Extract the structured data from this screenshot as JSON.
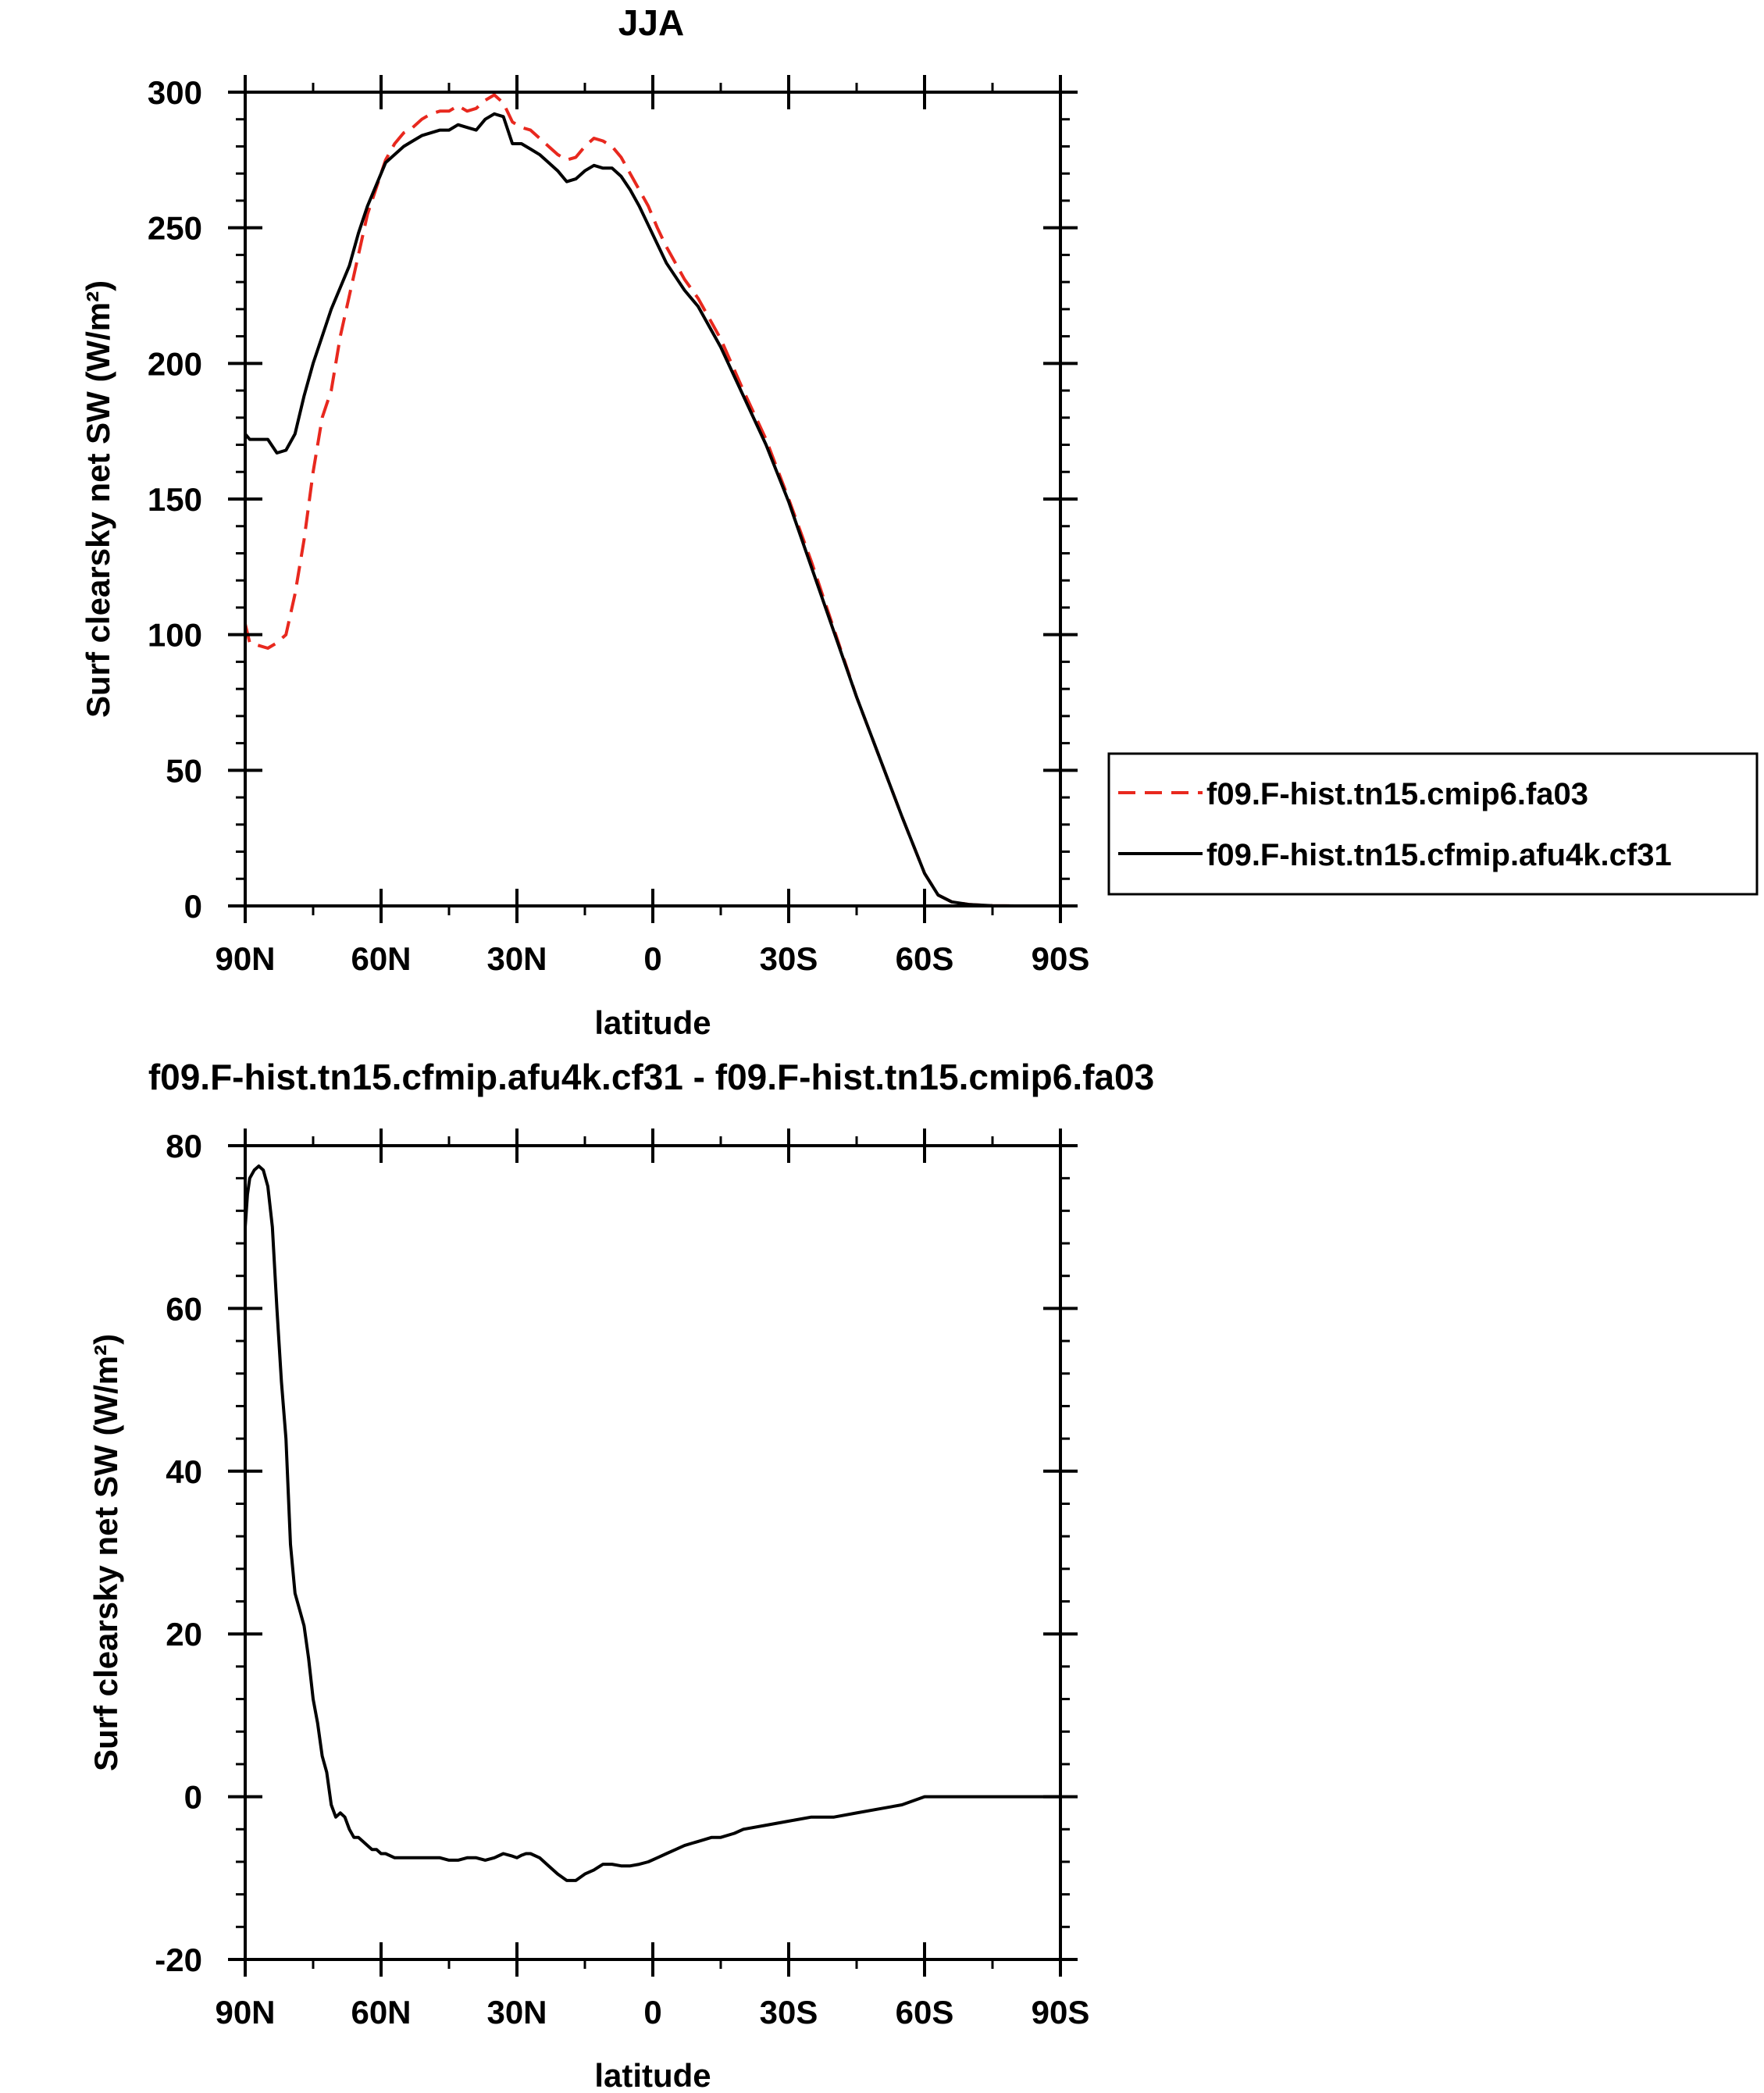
{
  "chart_data": [
    {
      "type": "line",
      "title": "JJA",
      "xlabel": "latitude",
      "ylabel": "Surf clearsky net SW (W/m²)",
      "xlim": [
        90,
        -90
      ],
      "ylim": [
        0,
        300
      ],
      "xticks": [
        90,
        60,
        30,
        0,
        -30,
        -60,
        -90
      ],
      "xtick_labels": [
        "90N",
        "60N",
        "30N",
        "0",
        "30S",
        "60S",
        "90S"
      ],
      "yticks": [
        0,
        50,
        100,
        150,
        200,
        250,
        300
      ],
      "ytick_labels": [
        "0",
        "50",
        "100",
        "150",
        "200",
        "250",
        "300"
      ],
      "grid": false,
      "legend_position": "right",
      "series": [
        {
          "name": "f09.F-hist.tn15.cmip6.fa03",
          "color": "#e8281e",
          "dash": "dashed",
          "x": [
            90,
            89,
            87,
            85,
            83,
            81,
            79,
            77,
            75,
            73,
            71,
            69,
            67,
            65,
            63,
            61,
            59,
            57,
            55,
            53,
            51,
            49,
            47,
            45,
            43,
            41,
            39,
            37,
            35,
            33,
            31,
            29,
            27,
            25,
            23,
            21,
            19,
            17,
            15,
            13,
            11,
            9,
            7,
            5,
            3,
            1,
            -1,
            -3,
            -5,
            -7,
            -10,
            -15,
            -20,
            -25,
            -30,
            -35,
            -40,
            -45,
            -50,
            -55,
            -60,
            -63,
            -66,
            -70,
            -75,
            -80,
            -85,
            -90
          ],
          "y": [
            104,
            97,
            96,
            95,
            97,
            100,
            115,
            135,
            160,
            180,
            190,
            210,
            225,
            240,
            255,
            265,
            275,
            281,
            285,
            287,
            290,
            292,
            293,
            293,
            295,
            293,
            294,
            297,
            299,
            296,
            289,
            287,
            286,
            283,
            280,
            277,
            275,
            276,
            280,
            283,
            282,
            280,
            276,
            270,
            264,
            258,
            250,
            243,
            237,
            231,
            224,
            209,
            190,
            172,
            150,
            127,
            102,
            77,
            55,
            33,
            12,
            4,
            1.5,
            0.5,
            0.1,
            0,
            0,
            0
          ]
        },
        {
          "name": "f09.F-hist.tn15.cfmip.afu4k.cf31",
          "color": "#000000",
          "dash": "solid",
          "x": [
            90,
            89,
            87,
            85,
            83,
            81,
            79,
            77,
            75,
            73,
            71,
            69,
            67,
            65,
            63,
            61,
            59,
            57,
            55,
            53,
            51,
            49,
            47,
            45,
            43,
            41,
            39,
            37,
            35,
            33,
            31,
            29,
            27,
            25,
            23,
            21,
            19,
            17,
            15,
            13,
            11,
            9,
            7,
            5,
            3,
            1,
            -1,
            -3,
            -5,
            -7,
            -10,
            -15,
            -20,
            -25,
            -30,
            -35,
            -40,
            -45,
            -50,
            -55,
            -60,
            -63,
            -66,
            -70,
            -75,
            -80,
            -85,
            -90
          ],
          "y": [
            174,
            172,
            172,
            172,
            167,
            168,
            174,
            188,
            200,
            210,
            220,
            228,
            236,
            248,
            258,
            266,
            274,
            277,
            280,
            282,
            284,
            285,
            286,
            286,
            288,
            287,
            286,
            290,
            292,
            291,
            281,
            281,
            279,
            277,
            274,
            271,
            267,
            268,
            271,
            273,
            272,
            272,
            269,
            264,
            258,
            251,
            244,
            237,
            232,
            227,
            221,
            206,
            188,
            170,
            149,
            125,
            101,
            77,
            55,
            33,
            12,
            4,
            1.5,
            0.5,
            0.1,
            0,
            0,
            0
          ]
        }
      ]
    },
    {
      "type": "line",
      "title": "f09.F-hist.tn15.cfmip.afu4k.cf31 - f09.F-hist.tn15.cmip6.fa03",
      "xlabel": "latitude",
      "ylabel": "Surf clearsky net SW (W/m²)",
      "xlim": [
        90,
        -90
      ],
      "ylim": [
        -20,
        80
      ],
      "xticks": [
        90,
        60,
        30,
        0,
        -30,
        -60,
        -90
      ],
      "xtick_labels": [
        "90N",
        "60N",
        "30N",
        "0",
        "30S",
        "60S",
        "90S"
      ],
      "yticks": [
        -20,
        0,
        20,
        40,
        60,
        80
      ],
      "ytick_labels": [
        "-20",
        "0",
        "20",
        "40",
        "60",
        "80"
      ],
      "grid": false,
      "series": [
        {
          "color": "#000000",
          "dash": "solid",
          "x": [
            90,
            89.5,
            89,
            88,
            87,
            86,
            85,
            84,
            83,
            82,
            81,
            80,
            79,
            78,
            77,
            76,
            75,
            74,
            73,
            72,
            71,
            70,
            69,
            68,
            67,
            66,
            65,
            64,
            63,
            62,
            61,
            60,
            59,
            57,
            55,
            53,
            51,
            49,
            47,
            45,
            43,
            41,
            39,
            37,
            35,
            33,
            31,
            30,
            29,
            28,
            27,
            25,
            23,
            21,
            19,
            17,
            15,
            13,
            11,
            9,
            7,
            5,
            3,
            1,
            -1,
            -3,
            -5,
            -7,
            -10,
            -13,
            -15,
            -18,
            -20,
            -25,
            -30,
            -35,
            -40,
            -45,
            -50,
            -55,
            -60,
            -63,
            -66,
            -70,
            -75,
            -80,
            -85,
            -90
          ],
          "y": [
            70,
            74,
            76,
            77,
            77.5,
            77,
            75,
            70,
            60,
            51,
            44,
            31,
            25,
            23,
            21,
            17,
            12,
            9,
            5,
            3,
            -1,
            -2.5,
            -2,
            -2.5,
            -4,
            -5,
            -5,
            -5.5,
            -6,
            -6.5,
            -6.5,
            -7,
            -7,
            -7.5,
            -7.5,
            -7.5,
            -7.5,
            -7.5,
            -7.5,
            -7.8,
            -7.8,
            -7.5,
            -7.5,
            -7.8,
            -7.5,
            -7,
            -7.3,
            -7.5,
            -7.2,
            -7,
            -7,
            -7.5,
            -8.5,
            -9.5,
            -10.3,
            -10.3,
            -9.5,
            -9,
            -8.3,
            -8.3,
            -8.5,
            -8.5,
            -8.3,
            -8,
            -7.5,
            -7,
            -6.5,
            -6,
            -5.5,
            -5,
            -5,
            -4.5,
            -4,
            -3.5,
            -3,
            -2.5,
            -2.5,
            -2,
            -1.5,
            -1,
            0,
            0,
            0,
            0,
            0,
            0,
            0,
            0
          ]
        }
      ]
    }
  ]
}
